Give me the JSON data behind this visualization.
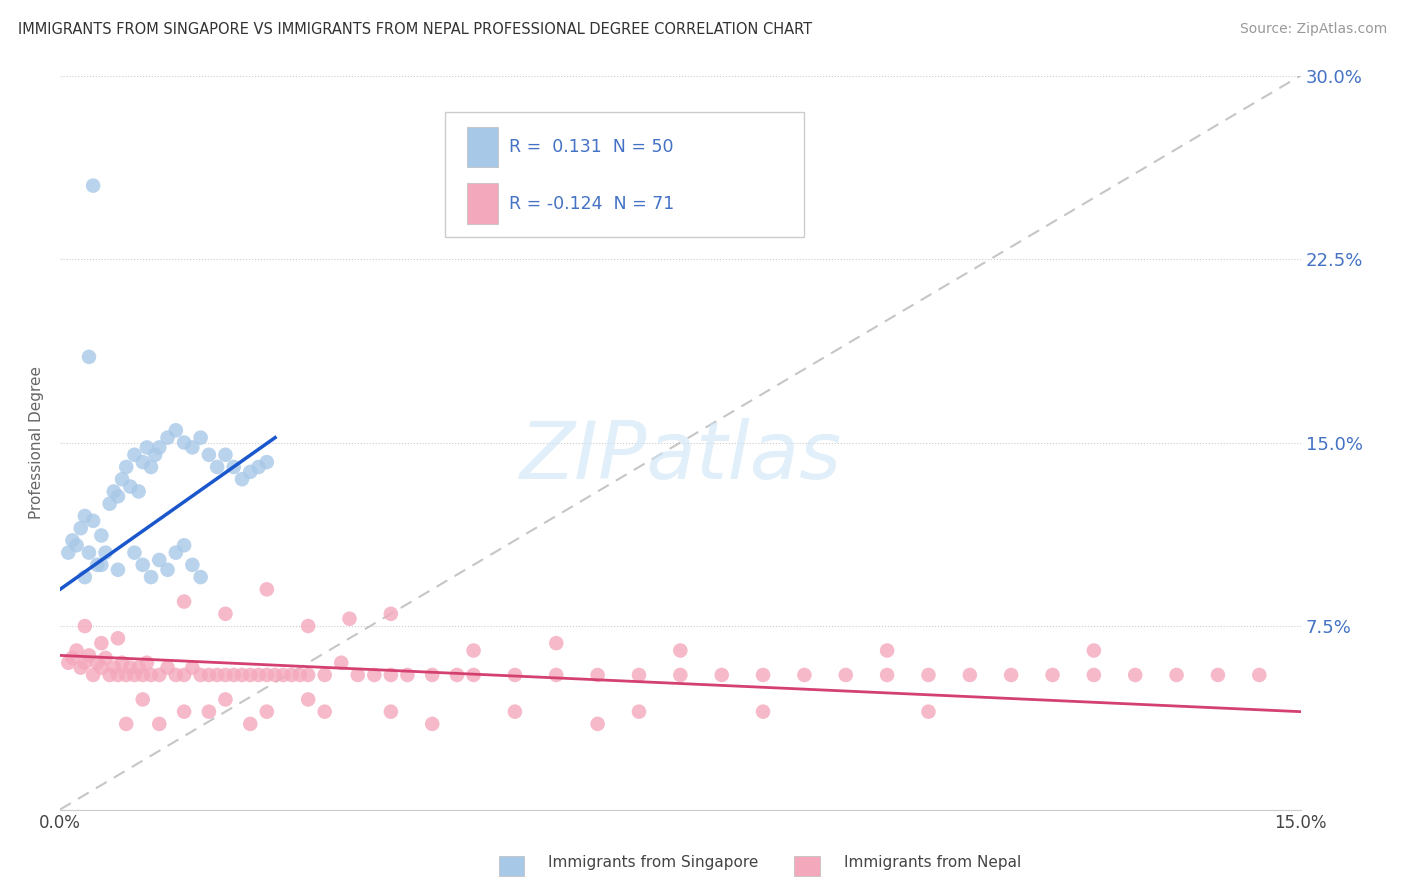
{
  "title": "IMMIGRANTS FROM SINGAPORE VS IMMIGRANTS FROM NEPAL PROFESSIONAL DEGREE CORRELATION CHART",
  "source": "Source: ZipAtlas.com",
  "ylabel": "Professional Degree",
  "xlim": [
    0.0,
    15.0
  ],
  "ylim": [
    0.0,
    30.0
  ],
  "singapore_color": "#a8c8e8",
  "nepal_color": "#f4a8bc",
  "singapore_R": 0.131,
  "singapore_N": 50,
  "nepal_R": -0.124,
  "nepal_N": 71,
  "sg_trend_x0": 0.0,
  "sg_trend_y0": 9.0,
  "sg_trend_x1": 2.6,
  "sg_trend_y1": 15.2,
  "np_trend_x0": 0.0,
  "np_trend_y0": 6.3,
  "np_trend_x1": 15.0,
  "np_trend_y1": 4.0,
  "background_color": "#ffffff",
  "watermark_text": "ZIPatlas",
  "tick_color": "#4472c4",
  "right_ytick_labels": [
    "7.5%",
    "15.0%",
    "22.5%",
    "30.0%"
  ],
  "right_ytick_values": [
    7.5,
    15.0,
    22.5,
    30.0
  ],
  "legend_r1": "R =  0.131  N = 50",
  "legend_r2": "R = -0.124  N = 71"
}
